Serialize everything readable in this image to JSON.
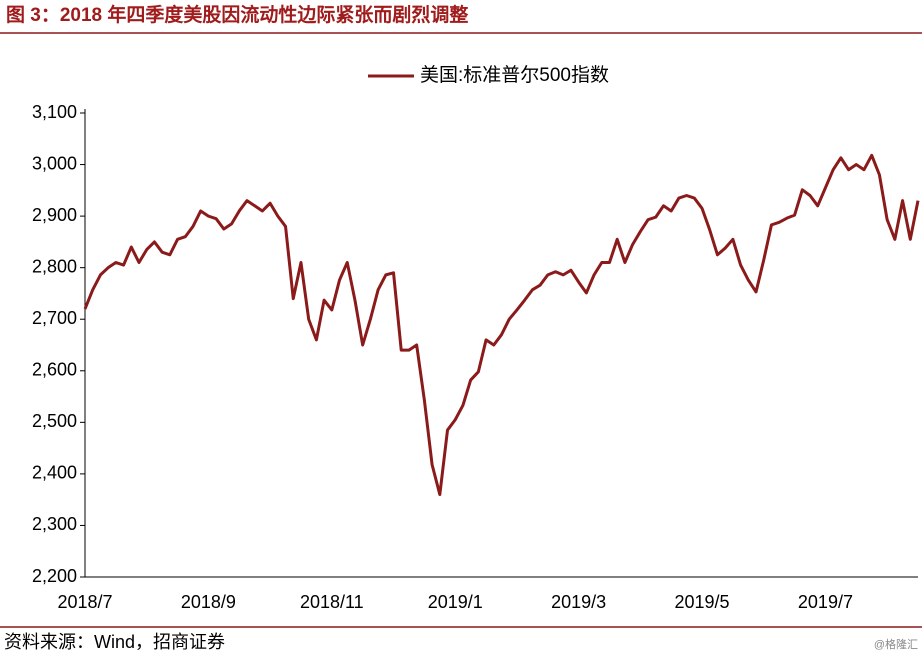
{
  "chart_data": {
    "type": "line",
    "title": "图 3：2018 年四季度美股因流动性边际紧张而剧烈调整",
    "source": "资料来源：Wind，招商证券",
    "watermark": "@格隆汇",
    "categories": [
      "2018/7",
      null,
      null,
      null,
      null,
      null,
      null,
      null,
      null,
      null,
      null,
      null,
      null,
      null,
      null,
      null,
      "2018/9",
      null,
      null,
      null,
      null,
      null,
      null,
      null,
      null,
      null,
      null,
      null,
      null,
      null,
      null,
      null,
      "2018/11",
      null,
      null,
      null,
      null,
      null,
      null,
      null,
      null,
      null,
      null,
      null,
      null,
      null,
      null,
      null,
      "2019/1",
      null,
      null,
      null,
      null,
      null,
      null,
      null,
      null,
      null,
      null,
      null,
      null,
      null,
      null,
      null,
      "2019/3",
      null,
      null,
      null,
      null,
      null,
      null,
      null,
      null,
      null,
      null,
      null,
      null,
      null,
      null,
      null,
      "2019/5",
      null,
      null,
      null,
      null,
      null,
      null,
      null,
      null,
      null,
      null,
      null,
      null,
      null,
      null,
      null,
      "2019/7",
      null,
      null,
      null,
      null,
      null,
      null,
      null,
      null,
      null,
      null,
      null,
      null
    ],
    "series": [
      {
        "name": "美国:标准普尔500指数",
        "color": "#8b1a1a",
        "values": [
          2720,
          2757,
          2786,
          2800,
          2810,
          2805,
          2840,
          2810,
          2835,
          2850,
          2830,
          2825,
          2855,
          2860,
          2880,
          2910,
          2900,
          2895,
          2875,
          2885,
          2910,
          2930,
          2920,
          2910,
          2925,
          2900,
          2880,
          2740,
          2810,
          2700,
          2660,
          2737,
          2718,
          2776,
          2810,
          2737,
          2650,
          2700,
          2757,
          2786,
          2790,
          2640,
          2640,
          2650,
          2543,
          2418,
          2360,
          2485,
          2505,
          2533,
          2582,
          2598,
          2660,
          2650,
          2670,
          2700,
          2718,
          2737,
          2757,
          2766,
          2786,
          2792,
          2786,
          2795,
          2772,
          2751,
          2786,
          2810,
          2810,
          2855,
          2810,
          2845,
          2870,
          2893,
          2898,
          2920,
          2910,
          2935,
          2940,
          2935,
          2915,
          2873,
          2825,
          2838,
          2855,
          2805,
          2776,
          2753,
          2815,
          2883,
          2888,
          2896,
          2902,
          2951,
          2940,
          2920,
          2955,
          2990,
          3013,
          2990,
          3000,
          2990,
          3018,
          2980,
          2893,
          2855,
          2930,
          2855,
          2930
        ]
      }
    ],
    "ylim": [
      2200,
      3100
    ],
    "yticks": [
      {
        "value": 2200,
        "label": "2,200"
      },
      {
        "value": 2300,
        "label": "2,300"
      },
      {
        "value": 2400,
        "label": "2,400"
      },
      {
        "value": 2500,
        "label": "2,500"
      },
      {
        "value": 2600,
        "label": "2,600"
      },
      {
        "value": 2700,
        "label": "2,700"
      },
      {
        "value": 2800,
        "label": "2,800"
      },
      {
        "value": 2900,
        "label": "2,900"
      },
      {
        "value": 3000,
        "label": "3,000"
      },
      {
        "value": 3100,
        "label": "3,100"
      }
    ],
    "grid": false
  }
}
